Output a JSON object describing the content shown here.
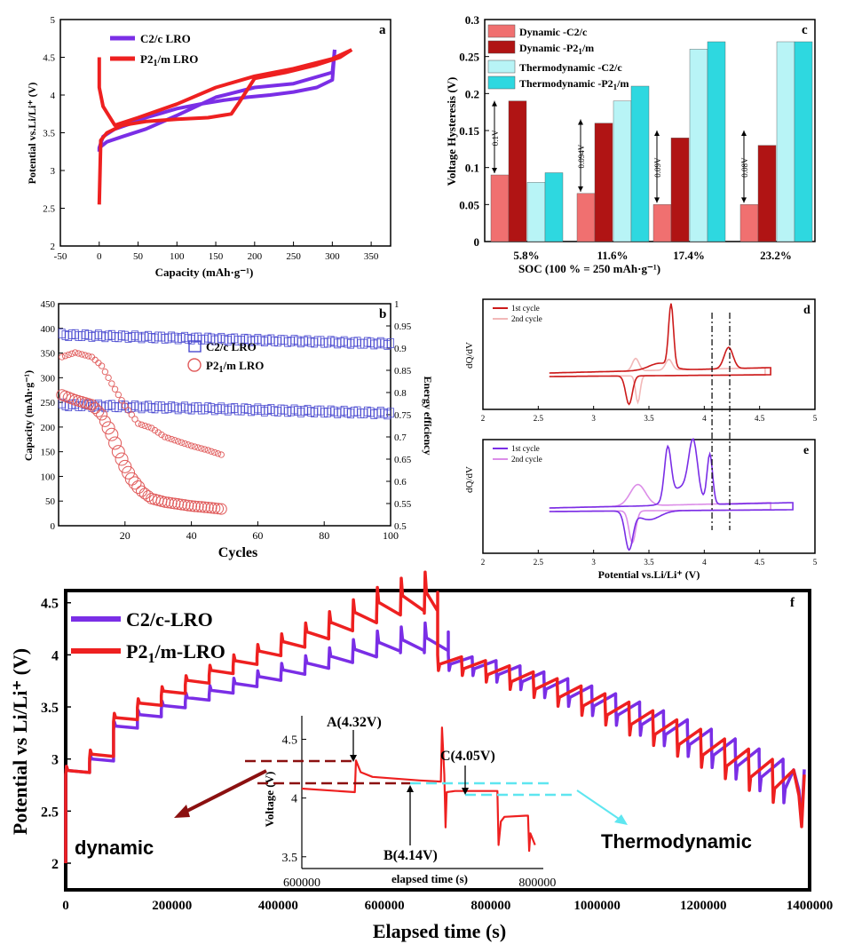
{
  "figure": {
    "panel_a": {
      "label": "a",
      "xlabel": "Capacity (mAh·g⁻¹)",
      "ylabel": "Potential vs.Li/Li⁺ (V)",
      "xticks": [
        "-50",
        "0",
        "50",
        "100",
        "150",
        "200",
        "250",
        "300",
        "350"
      ],
      "yticks": [
        "2",
        "2.5",
        "3",
        "3.5",
        "4",
        "4.5",
        "5"
      ]
    },
    "panel_b": {
      "label": "b",
      "xlabel": "Cycles",
      "ylabel": "Capacity (mAh·g⁻¹)",
      "y2label": "Energy efficiency",
      "xticks": [
        "20",
        "40",
        "60",
        "80",
        "100"
      ],
      "yticks": [
        "0",
        "50",
        "100",
        "150",
        "200",
        "250",
        "300",
        "350",
        "400",
        "450"
      ],
      "y2ticks": [
        "0.5",
        "0.55",
        "0.6",
        "0.65",
        "0.7",
        "0.75",
        "0.8",
        "0.85",
        "0.9",
        "0.95",
        "1"
      ]
    },
    "panel_c": {
      "label": "c",
      "xlabel": "SOC (100 % = 250 mAh·g⁻¹)",
      "ylabel": "Voltage Hysteresis (V)",
      "yticks": [
        "0",
        "0.05",
        "0.1",
        "0.15",
        "0.2",
        "0.25",
        "0.3"
      ],
      "annotations": [
        "0.1V",
        "0.094V",
        "0.09V",
        "0.08V"
      ]
    },
    "panel_d": {
      "label": "d",
      "ylabel": "dQ/dV",
      "legend": [
        "1st cycle",
        "2nd cycle"
      ],
      "xticks": [
        "2",
        "2.5",
        "3",
        "3.5",
        "4",
        "4.5",
        "5"
      ]
    },
    "panel_e": {
      "label": "e",
      "ylabel": "dQ/dV",
      "xlabel": "Potential vs.Li/Li⁺ (V)",
      "legend": [
        "1st cycle",
        "2nd cycle"
      ],
      "xticks": [
        "2",
        "2.5",
        "3",
        "3.5",
        "4",
        "4.5",
        "5"
      ]
    },
    "panel_f": {
      "label": "f",
      "xlabel": "Elapsed time (s)",
      "ylabel": "Potential vs Li/Li⁺ (V)",
      "xticks": [
        "0",
        "200000",
        "400000",
        "600000",
        "800000",
        "1000000",
        "1200000",
        "1400000"
      ],
      "yticks": [
        "2",
        "2.5",
        "3",
        "3.5",
        "4",
        "4.5"
      ],
      "left_label": "dynamic",
      "right_label": "Thermodynamic",
      "inset": {
        "ylabel": "Voltage (V)",
        "xlabel": "elapsed time (s)",
        "xticks": [
          "600000",
          "800000"
        ],
        "yticks": [
          "3.5",
          "4",
          "4.5"
        ],
        "point_a": "A(4.32V)",
        "point_b": "B(4.14V)",
        "point_c": "C(4.05V)"
      }
    }
  },
  "colors": {
    "c2c": "#7a2ee6",
    "p21m": "#ee2020",
    "dyn_c2c": "#f07070",
    "dyn_p21m": "#b01414",
    "thermo_c2c": "#b8f4f6",
    "thermo_p21m": "#2ed8e0",
    "d_first": "#cc1a1a",
    "d_second": "#f2b8b8",
    "e_first": "#7a2ee6",
    "e_second": "#dc8ee8",
    "circle": "#e05a5a",
    "square": "#4a4ad0"
  },
  "chart_data": [
    {
      "type": "line",
      "panel": "a",
      "xlabel": "Capacity (mAh·g⁻¹)",
      "ylabel": "Potential vs.Li/Li⁺ (V)",
      "xlim": [
        -50,
        375
      ],
      "ylim": [
        2,
        5
      ],
      "series": [
        {
          "name": "C2/c LRO",
          "color": "#7a2ee6",
          "charge_x": [
            0,
            5,
            20,
            40,
            60,
            80,
            100,
            130,
            160,
            190,
            220,
            250,
            280,
            300,
            303
          ],
          "charge_y": [
            3.3,
            3.45,
            3.55,
            3.62,
            3.7,
            3.76,
            3.82,
            3.88,
            3.93,
            3.97,
            4.0,
            4.04,
            4.1,
            4.2,
            4.6
          ],
          "discharge_x": [
            303,
            300,
            250,
            200,
            150,
            100,
            60,
            30,
            10,
            0,
            0
          ],
          "discharge_y": [
            4.6,
            4.3,
            4.15,
            4.1,
            3.97,
            3.73,
            3.55,
            3.45,
            3.38,
            3.3,
            3.25
          ]
        },
        {
          "name": "P21/m LRO",
          "color": "#ee2020",
          "charge_x": [
            0,
            2,
            10,
            30,
            60,
            100,
            140,
            170,
            180,
            200,
            240,
            280,
            310,
            325
          ],
          "charge_y": [
            2.55,
            3.4,
            3.5,
            3.6,
            3.65,
            3.68,
            3.7,
            3.75,
            3.9,
            4.22,
            4.3,
            4.4,
            4.5,
            4.6
          ],
          "discharge_x": [
            325,
            300,
            250,
            200,
            150,
            100,
            50,
            20,
            5,
            0,
            0
          ],
          "discharge_y": [
            4.6,
            4.48,
            4.35,
            4.25,
            4.1,
            3.88,
            3.7,
            3.6,
            3.85,
            4.1,
            4.5
          ]
        }
      ]
    },
    {
      "type": "scatter",
      "panel": "b",
      "xlabel": "Cycles",
      "ylabel": "Capacity (mAh·g⁻¹)",
      "y2label": "Energy efficiency",
      "xlim": [
        0,
        100
      ],
      "ylim": [
        0,
        450
      ],
      "y2lim": [
        0.5,
        1.0
      ],
      "legend": [
        "C2/c LRO",
        "P21/m LRO"
      ],
      "series": [
        {
          "name": "C2/c LRO capacity",
          "marker": "square",
          "x_start": 1,
          "x_end": 100,
          "y_start": 245,
          "y_end": 228
        },
        {
          "name": "C2/c LRO efficiency",
          "marker": "square",
          "x_start": 1,
          "x_end": 100,
          "y_start": 0.93,
          "y_end": 0.91
        },
        {
          "name": "P21/m LRO capacity",
          "marker": "circle",
          "x": [
            1,
            5,
            10,
            13,
            16,
            18,
            20,
            22,
            25,
            28,
            32,
            36,
            40,
            45,
            49
          ],
          "y": [
            265,
            255,
            245,
            225,
            185,
            150,
            120,
            95,
            70,
            55,
            48,
            44,
            40,
            37,
            34
          ]
        },
        {
          "name": "P21/m LRO efficiency",
          "marker": "circle",
          "x": [
            1,
            5,
            10,
            13,
            16,
            20,
            24,
            28,
            32,
            36,
            40,
            45,
            49
          ],
          "y": [
            0.88,
            0.89,
            0.88,
            0.86,
            0.82,
            0.77,
            0.73,
            0.72,
            0.7,
            0.69,
            0.68,
            0.67,
            0.66
          ]
        }
      ]
    },
    {
      "type": "bar",
      "panel": "c",
      "categories": [
        "5.8%",
        "11.6%",
        "17.4%",
        "23.2%"
      ],
      "xlabel": "SOC (100 % = 250 mAh·g⁻¹)",
      "ylabel": "Voltage Hysteresis (V)",
      "ylim": [
        0,
        0.3
      ],
      "series": [
        {
          "name": "Dynamic -C2/c",
          "values": [
            0.09,
            0.065,
            0.05,
            0.05
          ]
        },
        {
          "name": "Dynamic -P21/m",
          "values": [
            0.19,
            0.16,
            0.14,
            0.13
          ]
        },
        {
          "name": "Thermodynamic -C2/c",
          "values": [
            0.08,
            0.19,
            0.26,
            0.27
          ]
        },
        {
          "name": "Thermodynamic -P21/m",
          "values": [
            0.093,
            0.21,
            0.27,
            0.27
          ]
        }
      ]
    },
    {
      "type": "line",
      "panel": "d",
      "ylabel": "dQ/dV",
      "xlim": [
        2,
        5
      ],
      "dashed_lines_x": [
        4.07,
        4.23
      ],
      "series": [
        {
          "name": "1st cycle",
          "charge_peaks_V": [
            3.7,
            4.22
          ],
          "discharge_peak_V": 3.32
        },
        {
          "name": "2nd cycle",
          "charge_peaks_V": [
            3.38,
            3.68
          ],
          "discharge_peak_V": 3.4
        }
      ]
    },
    {
      "type": "line",
      "panel": "e",
      "ylabel": "dQ/dV",
      "xlabel": "Potential vs.Li/Li⁺ (V)",
      "xlim": [
        2,
        5
      ],
      "dashed_lines_x": [
        4.07,
        4.23
      ],
      "series": [
        {
          "name": "1st cycle",
          "charge_peaks_V": [
            3.67,
            3.9,
            4.05
          ],
          "discharge_peak_V": 3.32
        },
        {
          "name": "2nd cycle",
          "charge_peaks_V": [
            3.4
          ],
          "discharge_peak_V": 3.35
        }
      ]
    },
    {
      "type": "line",
      "panel": "f",
      "xlabel": "Elapsed time (s)",
      "ylabel": "Potential vs Li/Li⁺ (V)",
      "xlim": [
        0,
        1400000
      ],
      "ylim": [
        2,
        4.6
      ],
      "series": [
        {
          "name": "C2/c-LRO",
          "peak_time_s": 720000,
          "peak_V": 4.22
        },
        {
          "name": "P21/m-LRO",
          "peak_time_s": 700000,
          "peak_V": 4.6
        }
      ],
      "inset": {
        "xlim": [
          600000,
          800000
        ],
        "ylim": [
          3.4,
          4.6
        ],
        "A_V": 4.32,
        "B_V": 4.14,
        "C_V": 4.05
      }
    }
  ]
}
